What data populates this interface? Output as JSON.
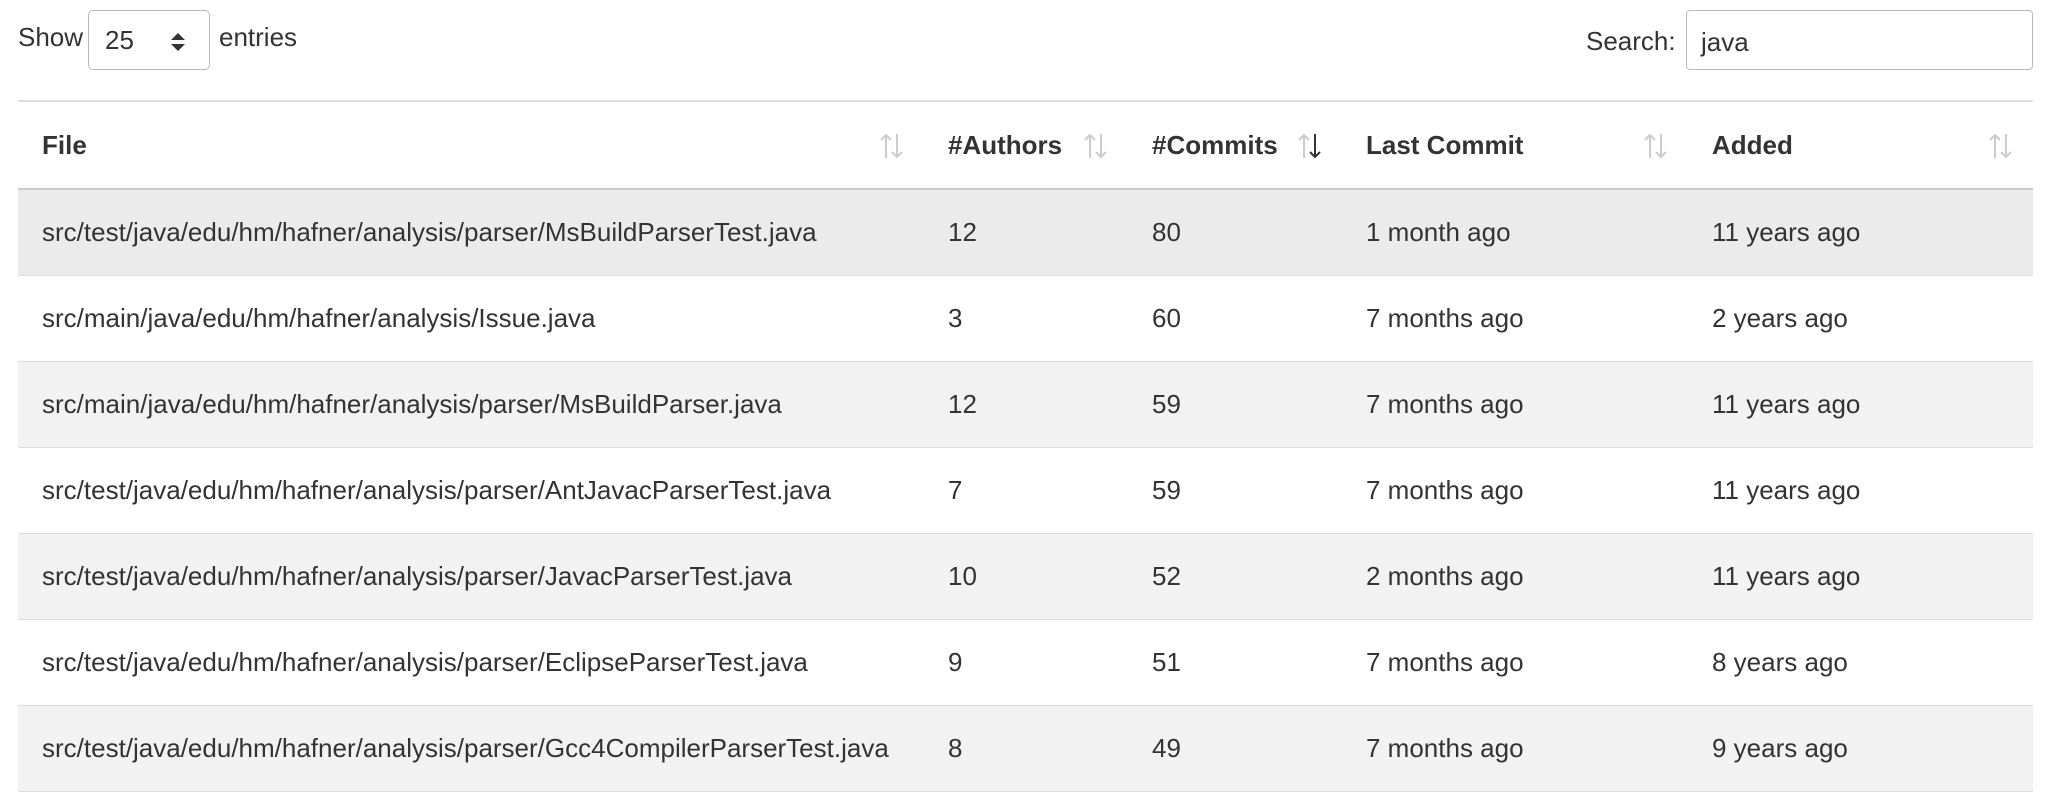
{
  "controls": {
    "show_label": "Show",
    "page_length": "25",
    "entries_label": "entries",
    "search_label": "Search:",
    "search_value": "java"
  },
  "table": {
    "headers": [
      "File",
      "#Authors",
      "#Commits",
      "Last Commit",
      "Added"
    ],
    "rows": [
      [
        "src/test/java/edu/hm/hafner/analysis/parser/MsBuildParserTest.java",
        "12",
        "80",
        "1 month ago",
        "11 years ago"
      ],
      [
        "src/main/java/edu/hm/hafner/analysis/Issue.java",
        "3",
        "60",
        "7 months ago",
        "2 years ago"
      ],
      [
        "src/main/java/edu/hm/hafner/analysis/parser/MsBuildParser.java",
        "12",
        "59",
        "7 months ago",
        "11 years ago"
      ],
      [
        "src/test/java/edu/hm/hafner/analysis/parser/AntJavacParserTest.java",
        "7",
        "59",
        "7 months ago",
        "11 years ago"
      ],
      [
        "src/test/java/edu/hm/hafner/analysis/parser/JavacParserTest.java",
        "10",
        "52",
        "2 months ago",
        "11 years ago"
      ],
      [
        "src/test/java/edu/hm/hafner/analysis/parser/EclipseParserTest.java",
        "9",
        "51",
        "7 months ago",
        "8 years ago"
      ],
      [
        "src/test/java/edu/hm/hafner/analysis/parser/Gcc4CompilerParserTest.java",
        "8",
        "49",
        "7 months ago",
        "9 years ago"
      ]
    ]
  }
}
